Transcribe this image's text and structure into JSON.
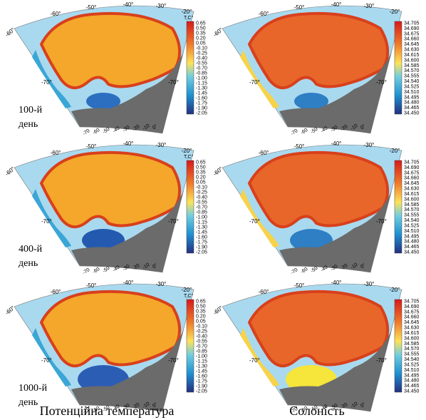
{
  "columns": [
    "Потенційна температура",
    "Солоність"
  ],
  "rows": [
    {
      "day": "100-й",
      "unit": "день"
    },
    {
      "day": "400-й",
      "unit": "день"
    },
    {
      "day": "1000-й",
      "unit": "день"
    }
  ],
  "map_labels": {
    "lon_top": [
      "-60°",
      "-50°",
      "-40°",
      "-30°",
      "-20°"
    ],
    "lat_left": [
      "-60°",
      "-70°"
    ],
    "lat_right": [
      "-70°"
    ],
    "lon_bottom": [
      "-70",
      "-60",
      "-50",
      "-40",
      "-30",
      "-20",
      "-10",
      "0°"
    ]
  },
  "colorbars": [
    {
      "title": "T,C°",
      "ticks": [
        "0.65",
        "0.50",
        "0.35",
        "0.20",
        "0.05",
        "-0.10",
        "-0.25",
        "-0.40",
        "-0.55",
        "-0.70",
        "-0.85",
        "-1.00",
        "-1.15",
        "-1.30",
        "-1.45",
        "-1.60",
        "-1.75",
        "-1.90",
        "-2.05"
      ]
    },
    {
      "ticks": [
        "34.705",
        "34.690",
        "34.675",
        "34.660",
        "34.645",
        "34.630",
        "34.615",
        "34.600",
        "34.585",
        "34.570",
        "34.555",
        "34.540",
        "34.525",
        "34.510",
        "34.495",
        "34.480",
        "34.465",
        "34.450"
      ]
    }
  ]
}
